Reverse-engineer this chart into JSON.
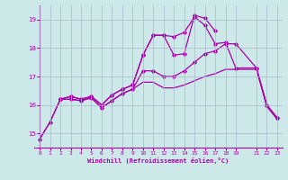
{
  "background_color": "#cce8e8",
  "grid_color": "#aabbcc",
  "line_color": "#aa00aa",
  "xlabel": "Windchill (Refroidissement éolien,°C)",
  "xlim": [
    -0.5,
    23.5
  ],
  "ylim": [
    14.5,
    19.5
  ],
  "yticks": [
    15,
    16,
    17,
    18,
    19
  ],
  "xticks": [
    0,
    1,
    2,
    3,
    4,
    5,
    6,
    7,
    8,
    9,
    10,
    11,
    12,
    13,
    14,
    15,
    16,
    17,
    18,
    19,
    21,
    22,
    23
  ],
  "line1_x": [
    0,
    1,
    2,
    3,
    4,
    5,
    6,
    7,
    8,
    9,
    10,
    11,
    12,
    13,
    14,
    15,
    16,
    17,
    18,
    19,
    21,
    22,
    23
  ],
  "line1_y": [
    14.8,
    15.4,
    16.2,
    16.2,
    16.15,
    16.25,
    15.9,
    16.15,
    16.4,
    16.55,
    16.8,
    16.8,
    16.6,
    16.6,
    16.7,
    16.85,
    17.0,
    17.1,
    17.25,
    17.25,
    17.25,
    15.95,
    15.5
  ],
  "line2_x": [
    0,
    1,
    2,
    3,
    4,
    5,
    6,
    7,
    8,
    9,
    10,
    11,
    12,
    13,
    14,
    15,
    16,
    17,
    18,
    19,
    21,
    22,
    23
  ],
  "line2_y": [
    14.8,
    15.4,
    16.2,
    16.2,
    16.15,
    16.25,
    15.9,
    16.15,
    16.4,
    16.55,
    17.2,
    17.2,
    17.0,
    17.0,
    17.2,
    17.5,
    17.8,
    17.9,
    18.15,
    18.15,
    17.3,
    16.0,
    15.55
  ],
  "line3_x": [
    2,
    3,
    4,
    5,
    6,
    7,
    8,
    9,
    10,
    11,
    12,
    13,
    14,
    15,
    16,
    17,
    18,
    19,
    21,
    22,
    23
  ],
  "line3_y": [
    16.2,
    16.3,
    16.2,
    16.3,
    16.0,
    16.35,
    16.55,
    16.7,
    17.75,
    18.45,
    18.45,
    18.4,
    18.55,
    19.1,
    18.8,
    18.15,
    18.2,
    17.3,
    17.3,
    16.0,
    15.55
  ],
  "line4_x": [
    2,
    3,
    4,
    5,
    6,
    7,
    8,
    9,
    10,
    11,
    12,
    13,
    14,
    15,
    16,
    17
  ],
  "line4_y": [
    16.2,
    16.3,
    16.2,
    16.3,
    16.0,
    16.35,
    16.55,
    16.7,
    17.75,
    18.45,
    18.45,
    17.75,
    17.8,
    19.15,
    19.05,
    18.6
  ]
}
